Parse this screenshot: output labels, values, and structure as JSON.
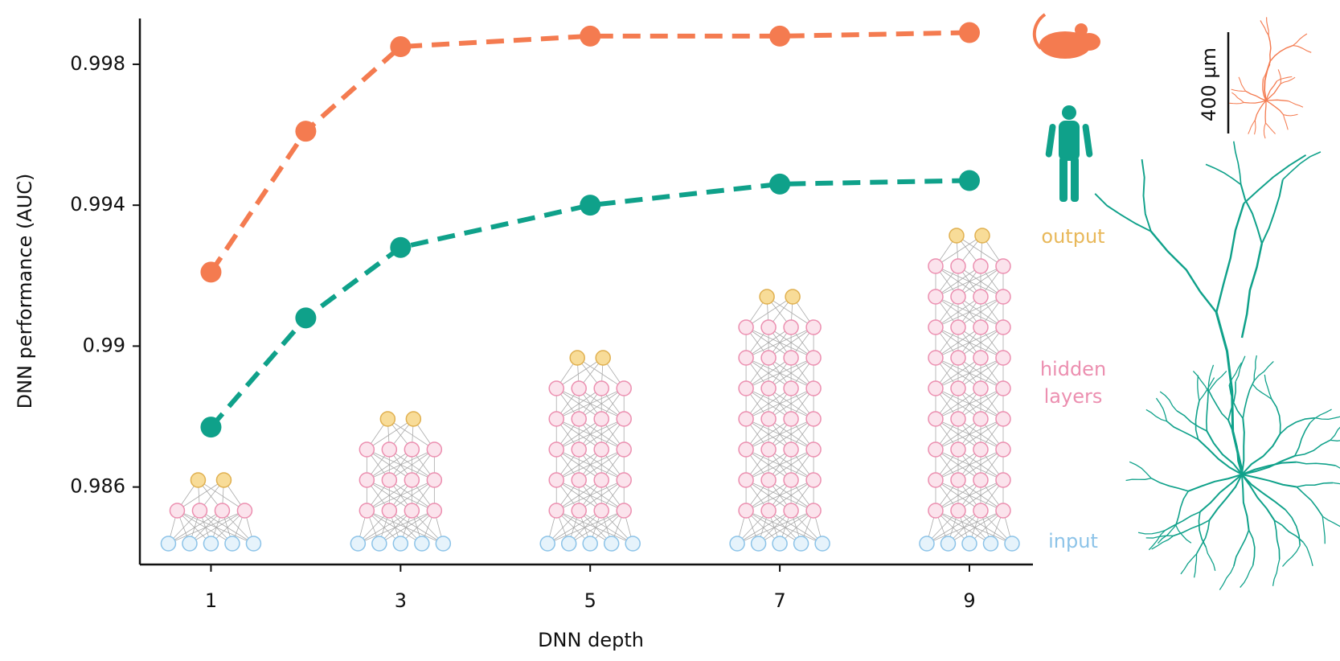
{
  "chart_data": {
    "type": "line",
    "x_label": "DNN depth",
    "y_label": "DNN performance (AUC)",
    "x": [
      1,
      2,
      3,
      5,
      7,
      9
    ],
    "series": [
      {
        "color": "#f47b50",
        "values": [
          0.9921,
          0.9961,
          0.9985,
          0.9988,
          0.9988,
          0.9989
        ]
      },
      {
        "color": "#0fa18a",
        "values": [
          0.9877,
          0.9908,
          0.9928,
          0.994,
          0.9946,
          0.9947
        ]
      }
    ],
    "xlim": [
      0.25,
      9.67
    ],
    "ylim": [
      0.9838,
      0.9993
    ],
    "xticks": [
      1,
      3,
      5,
      7,
      9
    ],
    "yticks": [
      0.986,
      0.99,
      0.994,
      0.998
    ],
    "annotations": [
      "output",
      "hidden",
      "layers",
      "input"
    ],
    "scale_bar": "400 µm"
  }
}
